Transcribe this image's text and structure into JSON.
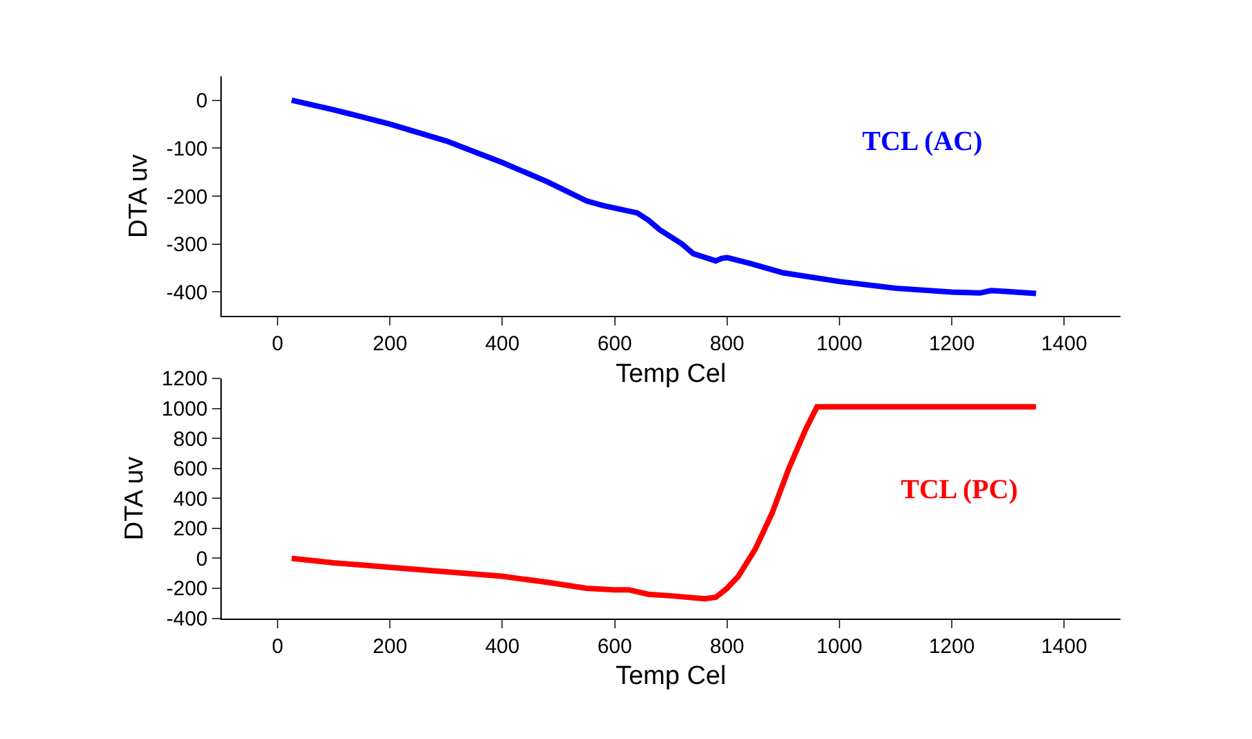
{
  "chart_data": [
    {
      "type": "line",
      "xlabel": "Temp Cel",
      "ylabel": "DTA uv",
      "legend": false,
      "xlim": [
        -100,
        1500
      ],
      "xticks": [
        0,
        200,
        400,
        600,
        800,
        1000,
        1200,
        1400
      ],
      "ylim": [
        -450,
        50
      ],
      "yticks": [
        -400,
        -300,
        -200,
        -100,
        0
      ],
      "series": [
        {
          "name": "TCL (AC)",
          "color": "#0000ff",
          "x": [
            25,
            100,
            200,
            300,
            400,
            480,
            550,
            580,
            600,
            640,
            660,
            680,
            720,
            740,
            780,
            790,
            800,
            840,
            900,
            1000,
            1100,
            1200,
            1250,
            1270,
            1300,
            1350
          ],
          "values": [
            0,
            -20,
            -50,
            -85,
            -130,
            -170,
            -210,
            -220,
            -225,
            -235,
            -250,
            -270,
            -300,
            -320,
            -335,
            -330,
            -328,
            -340,
            -360,
            -378,
            -392,
            -400,
            -402,
            -397,
            -399,
            -403
          ]
        }
      ]
    },
    {
      "type": "line",
      "xlabel": "Temp Cel",
      "ylabel": "DTA uv",
      "legend": false,
      "xlim": [
        -100,
        1500
      ],
      "xticks": [
        0,
        200,
        400,
        600,
        800,
        1000,
        1200,
        1400
      ],
      "ylim": [
        -400,
        1200
      ],
      "yticks": [
        -400,
        -200,
        0,
        200,
        400,
        600,
        800,
        1000,
        1200
      ],
      "series": [
        {
          "name": "TCL (PC)",
          "color": "#ff0000",
          "x": [
            25,
            100,
            200,
            300,
            400,
            480,
            550,
            600,
            625,
            660,
            700,
            760,
            780,
            800,
            820,
            850,
            880,
            910,
            940,
            960,
            1000,
            1350
          ],
          "values": [
            0,
            -30,
            -60,
            -90,
            -120,
            -160,
            -200,
            -210,
            -210,
            -240,
            -250,
            -270,
            -260,
            -200,
            -120,
            60,
            300,
            600,
            860,
            1010,
            1010,
            1010
          ]
        }
      ]
    }
  ]
}
